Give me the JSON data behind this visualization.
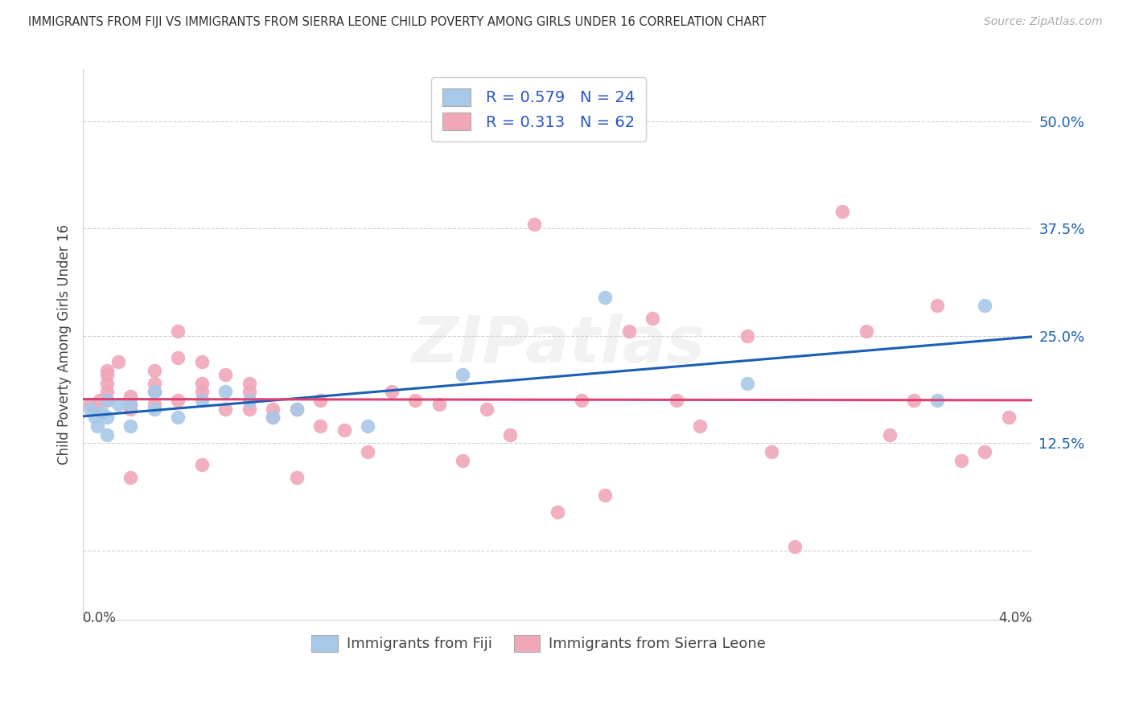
{
  "title": "IMMIGRANTS FROM FIJI VS IMMIGRANTS FROM SIERRA LEONE CHILD POVERTY AMONG GIRLS UNDER 16 CORRELATION CHART",
  "source": "Source: ZipAtlas.com",
  "ylabel": "Child Poverty Among Girls Under 16",
  "fiji_R": 0.579,
  "fiji_N": 24,
  "sl_R": 0.313,
  "sl_N": 62,
  "fiji_color": "#a8c8e8",
  "sl_color": "#f0a8b8",
  "fiji_line_color": "#1a5fb4",
  "sl_line_color": "#e04070",
  "legend_text_color": "#2855c8",
  "background_color": "#ffffff",
  "x_lim": [
    0.0,
    0.04
  ],
  "y_lim": [
    -0.08,
    0.56
  ],
  "y_ticks": [
    0.0,
    0.125,
    0.25,
    0.375,
    0.5
  ],
  "y_tick_labels": [
    "",
    "12.5%",
    "25.0%",
    "37.5%",
    "50.0%"
  ],
  "fiji_x": [
    0.0003,
    0.0005,
    0.0006,
    0.0008,
    0.001,
    0.001,
    0.001,
    0.0015,
    0.002,
    0.002,
    0.003,
    0.003,
    0.004,
    0.005,
    0.006,
    0.007,
    0.008,
    0.009,
    0.012,
    0.016,
    0.022,
    0.028,
    0.036,
    0.038
  ],
  "fiji_y": [
    0.165,
    0.155,
    0.145,
    0.16,
    0.175,
    0.155,
    0.135,
    0.17,
    0.145,
    0.17,
    0.185,
    0.165,
    0.155,
    0.175,
    0.185,
    0.175,
    0.155,
    0.165,
    0.145,
    0.205,
    0.295,
    0.195,
    0.175,
    0.285
  ],
  "sl_x": [
    0.0003,
    0.0005,
    0.0007,
    0.001,
    0.001,
    0.001,
    0.001,
    0.001,
    0.0015,
    0.002,
    0.002,
    0.002,
    0.002,
    0.003,
    0.003,
    0.003,
    0.003,
    0.004,
    0.004,
    0.004,
    0.005,
    0.005,
    0.005,
    0.005,
    0.006,
    0.006,
    0.007,
    0.007,
    0.007,
    0.008,
    0.008,
    0.009,
    0.009,
    0.01,
    0.01,
    0.011,
    0.012,
    0.013,
    0.014,
    0.015,
    0.016,
    0.017,
    0.018,
    0.019,
    0.02,
    0.021,
    0.022,
    0.023,
    0.024,
    0.025,
    0.026,
    0.028,
    0.029,
    0.03,
    0.032,
    0.033,
    0.034,
    0.035,
    0.036,
    0.037,
    0.038,
    0.039
  ],
  "sl_y": [
    0.17,
    0.165,
    0.175,
    0.195,
    0.185,
    0.205,
    0.175,
    0.21,
    0.22,
    0.18,
    0.17,
    0.165,
    0.085,
    0.21,
    0.195,
    0.185,
    0.17,
    0.225,
    0.255,
    0.175,
    0.22,
    0.195,
    0.185,
    0.1,
    0.205,
    0.165,
    0.195,
    0.185,
    0.165,
    0.165,
    0.155,
    0.165,
    0.085,
    0.175,
    0.145,
    0.14,
    0.115,
    0.185,
    0.175,
    0.17,
    0.105,
    0.165,
    0.135,
    0.38,
    0.045,
    0.175,
    0.065,
    0.255,
    0.27,
    0.175,
    0.145,
    0.25,
    0.115,
    0.005,
    0.395,
    0.255,
    0.135,
    0.175,
    0.285,
    0.105,
    0.115,
    0.155
  ]
}
